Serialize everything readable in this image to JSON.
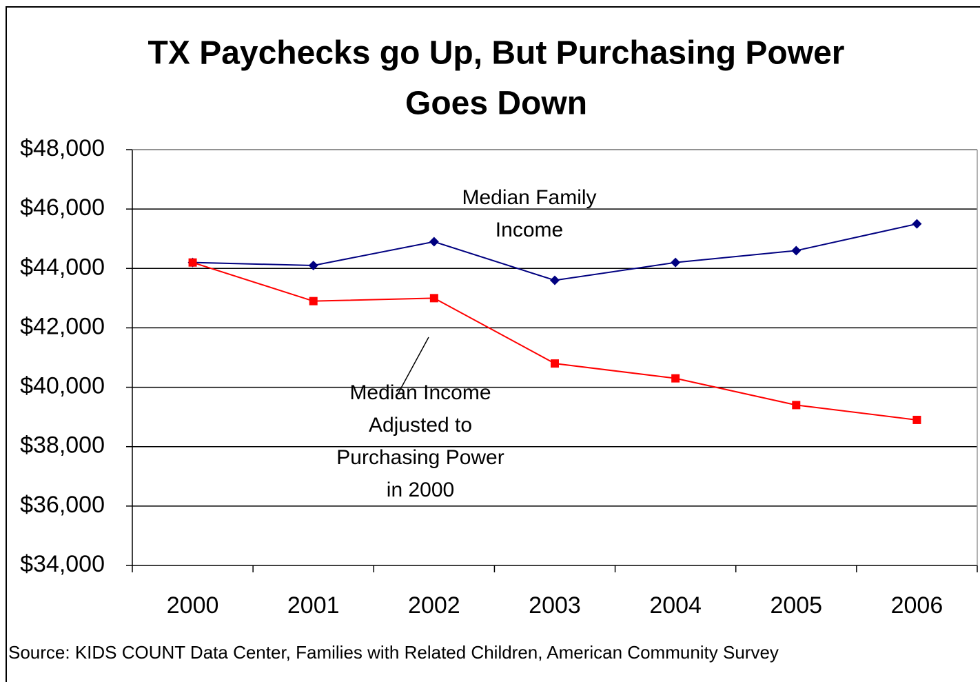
{
  "chart_data": {
    "type": "line",
    "title": [
      "TX Paychecks go Up, But Purchasing Power",
      "Goes Down"
    ],
    "categories": [
      "2000",
      "2001",
      "2002",
      "2003",
      "2004",
      "2005",
      "2006"
    ],
    "series": [
      {
        "name": [
          "Median Family",
          "Income"
        ],
        "color": "#000080",
        "marker": "diamond",
        "values": [
          44200,
          44100,
          44900,
          43600,
          44200,
          44600,
          45500
        ]
      },
      {
        "name": [
          "Median Income",
          "Adjusted to",
          "Purchasing Power",
          "in 2000"
        ],
        "color": "#ff0000",
        "marker": "square",
        "values": [
          44200,
          42900,
          43000,
          40800,
          40300,
          39400,
          38900
        ]
      }
    ],
    "ylim": [
      34000,
      48000
    ],
    "yticks": [
      {
        "value": 34000,
        "label": "$34,000"
      },
      {
        "value": 36000,
        "label": "$36,000"
      },
      {
        "value": 38000,
        "label": "$38,000"
      },
      {
        "value": 40000,
        "label": "$40,000"
      },
      {
        "value": 42000,
        "label": "$42,000"
      },
      {
        "value": 44000,
        "label": "$44,000"
      },
      {
        "value": 46000,
        "label": "$46,000"
      },
      {
        "value": 48000,
        "label": "$48,000"
      }
    ],
    "grid": true,
    "source": "Source: KIDS COUNT Data Center, Families with Related Children, American Community Survey"
  }
}
